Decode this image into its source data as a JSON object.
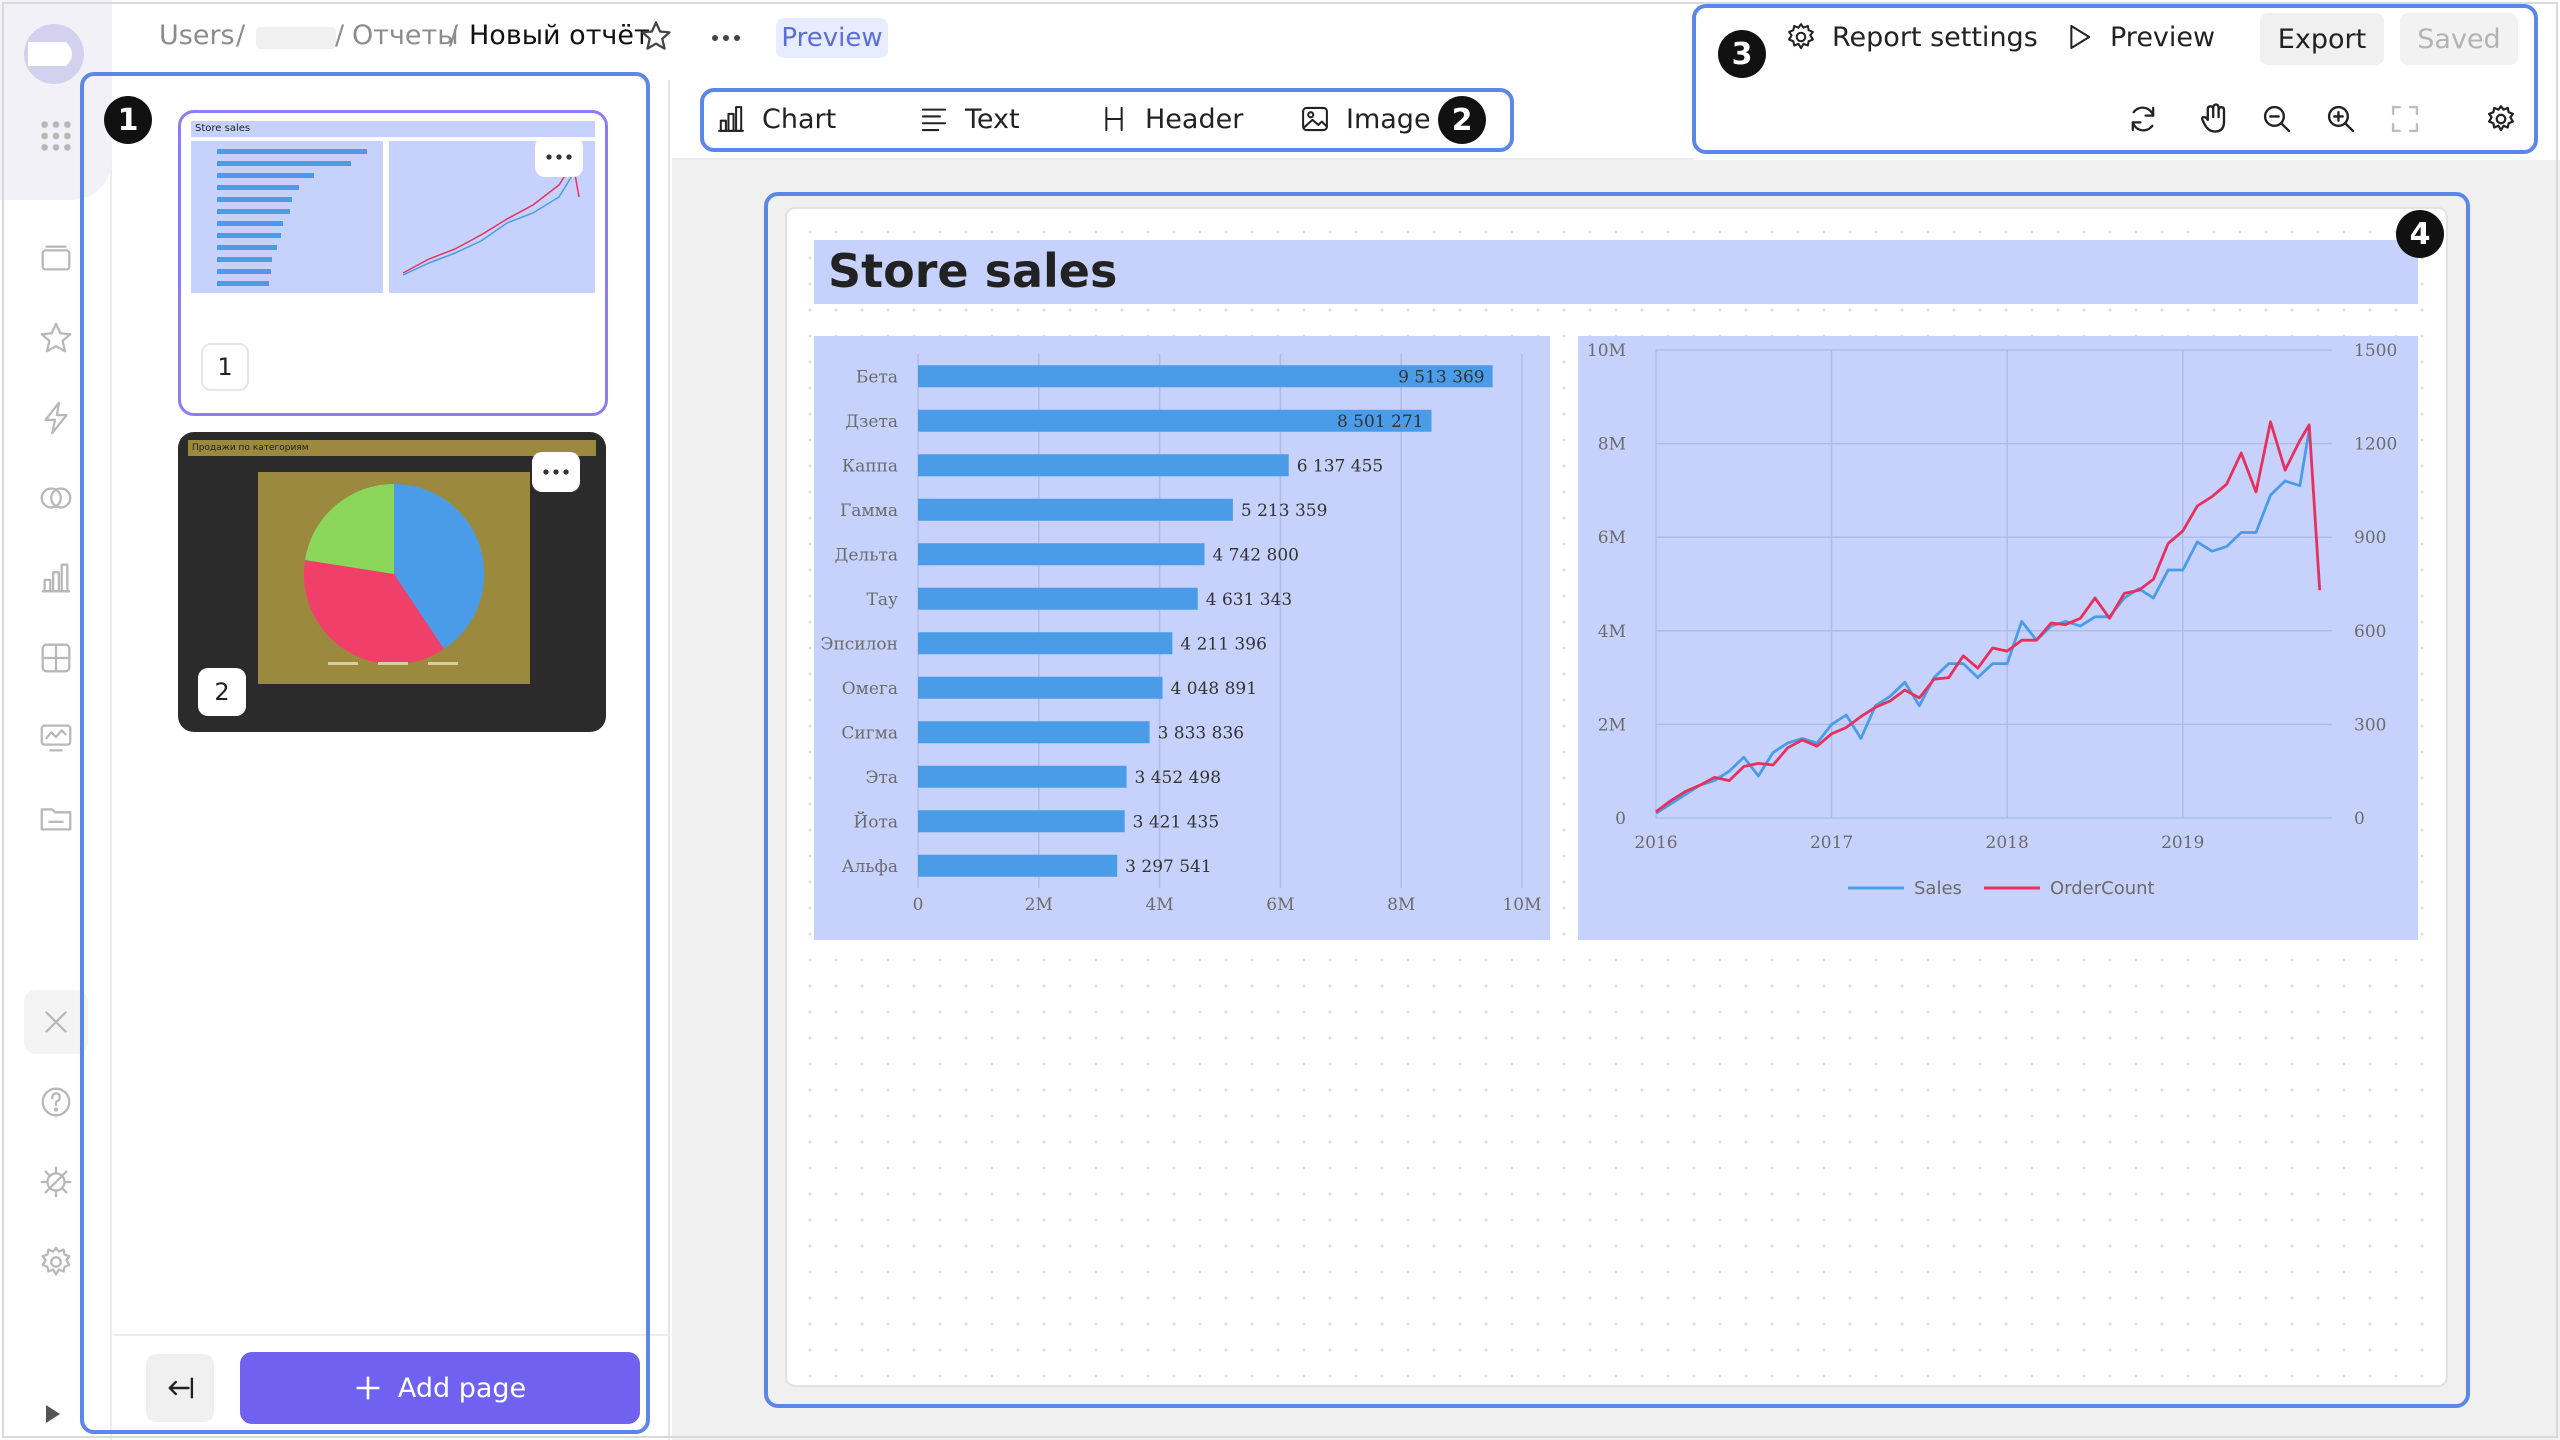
{
  "breadcrumb": {
    "users": "Users",
    "sep1": "/",
    "sep2": "/",
    "reports": "Отчеты",
    "sep3": "/",
    "current": "Новый отчёт",
    "preview_badge": "Preview"
  },
  "insert_toolbar": {
    "chart": "Chart",
    "text": "Text",
    "header": "Header",
    "image": "Image"
  },
  "action_toolbar": {
    "report_settings": "Report settings",
    "preview": "Preview",
    "export": "Export",
    "saved": "Saved"
  },
  "markers": [
    "1",
    "2",
    "3",
    "4"
  ],
  "pages": [
    {
      "number": "1",
      "title": "Store sales"
    },
    {
      "number": "2",
      "title": "Продажи по категориям"
    }
  ],
  "add_page_label": "Add page",
  "report": {
    "title": "Store sales"
  },
  "colors": {
    "accent": "#6f62f0",
    "highlight": "#5a87e8",
    "card_bg": "#c6d2fb",
    "bar": "#4a9ce8",
    "sales_line": "#4a9ce8",
    "ordercount_line": "#e8305e"
  },
  "chart_data": [
    {
      "type": "bar",
      "orientation": "horizontal",
      "categories": [
        "Бета",
        "Дзета",
        "Каппа",
        "Гамма",
        "Дельта",
        "Тау",
        "Эпсилон",
        "Омега",
        "Сигма",
        "Эта",
        "Йота",
        "Альфа"
      ],
      "values": [
        9513369,
        8501271,
        6137455,
        5213359,
        4742800,
        4631343,
        4211396,
        4048891,
        3833836,
        3452498,
        3421435,
        3297541
      ],
      "value_labels": [
        "9 513 369",
        "8 501 271",
        "6 137 455",
        "5 213 359",
        "4 742 800",
        "4 631 343",
        "4 211 396",
        "4 048 891",
        "3 833 836",
        "3 452 498",
        "3 421 435",
        "3 297 541"
      ],
      "x_ticks": [
        "0",
        "2M",
        "4M",
        "6M",
        "8M",
        "10M"
      ],
      "xlim": [
        0,
        10000000
      ],
      "grid": true
    },
    {
      "type": "line",
      "x_ticks": [
        "2016",
        "2017",
        "2018",
        "2019"
      ],
      "xlim": [
        2016,
        2019.85
      ],
      "y_ticks_left": [
        "0",
        "2M",
        "4M",
        "6M",
        "8M",
        "10M"
      ],
      "ylim_left": [
        0,
        10000000
      ],
      "y_ticks_right": [
        "0",
        "300",
        "600",
        "900",
        "1200",
        "1500"
      ],
      "ylim_right": [
        0,
        1500
      ],
      "legend_position": "bottom",
      "grid": true,
      "series": [
        {
          "name": "Sales",
          "axis": "left",
          "x": [
            2016.0,
            2016.083,
            2016.167,
            2016.25,
            2016.333,
            2016.417,
            2016.5,
            2016.583,
            2016.667,
            2016.75,
            2016.833,
            2016.917,
            2017.0,
            2017.083,
            2017.167,
            2017.25,
            2017.333,
            2017.417,
            2017.5,
            2017.583,
            2017.667,
            2017.75,
            2017.833,
            2017.917,
            2018.0,
            2018.083,
            2018.167,
            2018.25,
            2018.333,
            2018.417,
            2018.5,
            2018.583,
            2018.667,
            2018.75,
            2018.833,
            2018.917,
            2019.0,
            2019.083,
            2019.167,
            2019.25,
            2019.333,
            2019.417,
            2019.5,
            2019.583,
            2019.667,
            2019.72
          ],
          "values": [
            100000,
            300000,
            500000,
            700000,
            800000,
            1000000,
            1300000,
            900000,
            1400000,
            1600000,
            1700000,
            1600000,
            2000000,
            2200000,
            1700000,
            2400000,
            2600000,
            2900000,
            2400000,
            3000000,
            3300000,
            3300000,
            3000000,
            3300000,
            3300000,
            4200000,
            3800000,
            4100000,
            4200000,
            4100000,
            4300000,
            4300000,
            4700000,
            4900000,
            4700000,
            5300000,
            5300000,
            5900000,
            5700000,
            5800000,
            6100000,
            6100000,
            6900000,
            7200000,
            7100000,
            8300000
          ]
        },
        {
          "name": "OrderCount",
          "axis": "right",
          "x": [
            2016.0,
            2016.083,
            2016.167,
            2016.25,
            2016.333,
            2016.417,
            2016.5,
            2016.583,
            2016.667,
            2016.75,
            2016.833,
            2016.917,
            2017.0,
            2017.083,
            2017.167,
            2017.25,
            2017.333,
            2017.417,
            2017.5,
            2017.583,
            2017.667,
            2017.75,
            2017.833,
            2017.917,
            2018.0,
            2018.083,
            2018.167,
            2018.25,
            2018.333,
            2018.417,
            2018.5,
            2018.583,
            2018.667,
            2018.75,
            2018.833,
            2018.917,
            2019.0,
            2019.083,
            2019.167,
            2019.25,
            2019.333,
            2019.417,
            2019.5,
            2019.583,
            2019.667,
            2019.72,
            2019.78
          ],
          "values": [
            20,
            55,
            85,
            105,
            130,
            120,
            165,
            175,
            170,
            225,
            250,
            230,
            270,
            290,
            325,
            355,
            375,
            410,
            385,
            445,
            450,
            520,
            480,
            545,
            535,
            570,
            570,
            625,
            620,
            640,
            705,
            640,
            720,
            730,
            765,
            880,
            920,
            1000,
            1030,
            1070,
            1170,
            1045,
            1270,
            1115,
            1210,
            1260,
            730
          ]
        }
      ]
    }
  ]
}
